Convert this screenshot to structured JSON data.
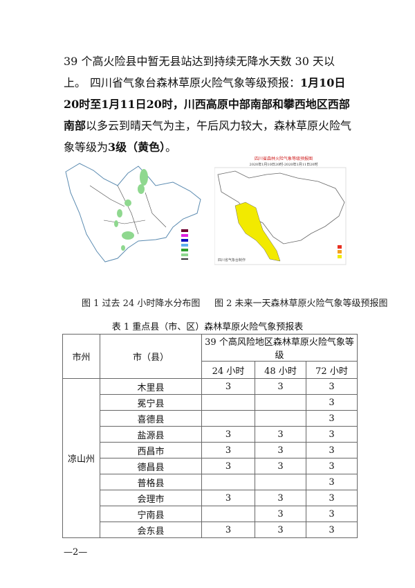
{
  "paragraphs": {
    "p1": "39 个高火险县中暂无县站达到持续无降水天数 30 天以上。",
    "p2_a": "四川省气象台森林草原火险气象等级预报：",
    "p2_b": "1月10日20时至1月11日20时，川西高原中部南部和攀西地区西部南部",
    "p2_c": "以多云到晴天气为主，午后风力较大，森林草原火险气象等级为",
    "p2_d": "3级（黄色）",
    "p2_e": "。"
  },
  "figures": {
    "fig1_caption": "图 1 过去 24 小时降水分布图",
    "fig2_caption": "图 2 未来一天森林草原火险气象等级预报图",
    "fig2_title": "四川省森林火险气象等级预报图",
    "fig2_subtitle": "2020年1月10日20时-2020年1月11日20时",
    "fig2_source": "四川省气象台制作",
    "colors": {
      "rain": "#8fd88f",
      "level3": "#f2ea00",
      "level4": "#f5a020",
      "level5": "#e83020"
    }
  },
  "table": {
    "caption": "表 1 重点县（市、区）森林草原火险气象预报表",
    "headers": {
      "prefecture": "市州",
      "county": "市（县）",
      "group": "39 个高风险地区森林草原火险气象等级",
      "h24": "24 小时",
      "h48": "48 小时",
      "h72": "72 小时"
    },
    "prefecture": "凉山州",
    "rows": [
      {
        "county": "木里县",
        "h24": "3",
        "h48": "3",
        "h72": "3"
      },
      {
        "county": "冕宁县",
        "h24": "",
        "h48": "",
        "h72": "3"
      },
      {
        "county": "喜德县",
        "h24": "",
        "h48": "",
        "h72": "3"
      },
      {
        "county": "盐源县",
        "h24": "3",
        "h48": "3",
        "h72": "3"
      },
      {
        "county": "西昌市",
        "h24": "3",
        "h48": "3",
        "h72": "3"
      },
      {
        "county": "德昌县",
        "h24": "3",
        "h48": "3",
        "h72": "3"
      },
      {
        "county": "普格县",
        "h24": "",
        "h48": "",
        "h72": "3"
      },
      {
        "county": "会理市",
        "h24": "3",
        "h48": "3",
        "h72": "3"
      },
      {
        "county": "宁南县",
        "h24": "",
        "h48": "3",
        "h72": "3"
      },
      {
        "county": "会东县",
        "h24": "3",
        "h48": "3",
        "h72": "3"
      }
    ]
  },
  "footer": {
    "page": "—2—"
  }
}
